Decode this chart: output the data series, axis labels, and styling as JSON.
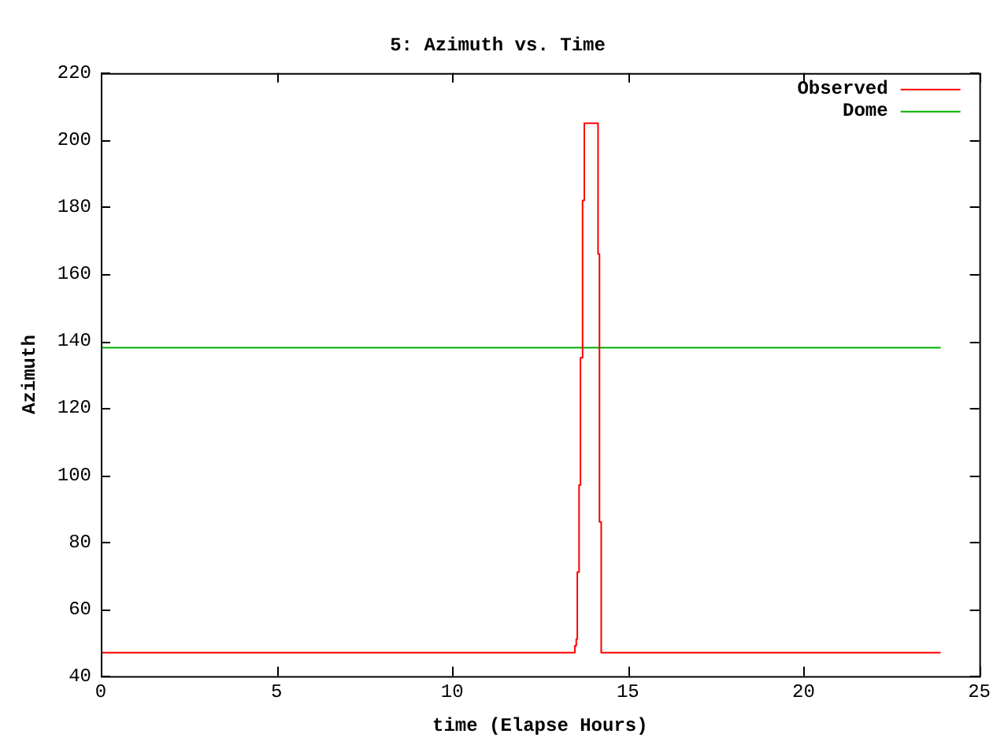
{
  "chart_data": {
    "type": "step",
    "title": "5: Azimuth vs. Time",
    "xlabel": "time (Elapse Hours)",
    "ylabel": "Azimuth",
    "xlim": [
      0,
      25
    ],
    "xticks": [
      0,
      5,
      10,
      15,
      20,
      25
    ],
    "ylim": [
      40,
      220
    ],
    "yticks": [
      40,
      60,
      80,
      100,
      120,
      140,
      160,
      180,
      200,
      220
    ],
    "legend": "top right",
    "grid": false,
    "series": [
      {
        "name": "Observed",
        "color": "#ff0000",
        "x": [
          0,
          13.49,
          13.53,
          13.56,
          13.61,
          13.65,
          13.71,
          13.76,
          14.15,
          14.19,
          14.24,
          23.9
        ],
        "values": [
          47,
          49,
          51,
          71,
          97,
          135,
          182,
          205,
          166,
          86,
          47,
          47
        ]
      },
      {
        "name": "Dome",
        "color": "#00b000",
        "type": "line",
        "x": [
          0,
          23.9
        ],
        "values": [
          138,
          138
        ]
      }
    ]
  }
}
